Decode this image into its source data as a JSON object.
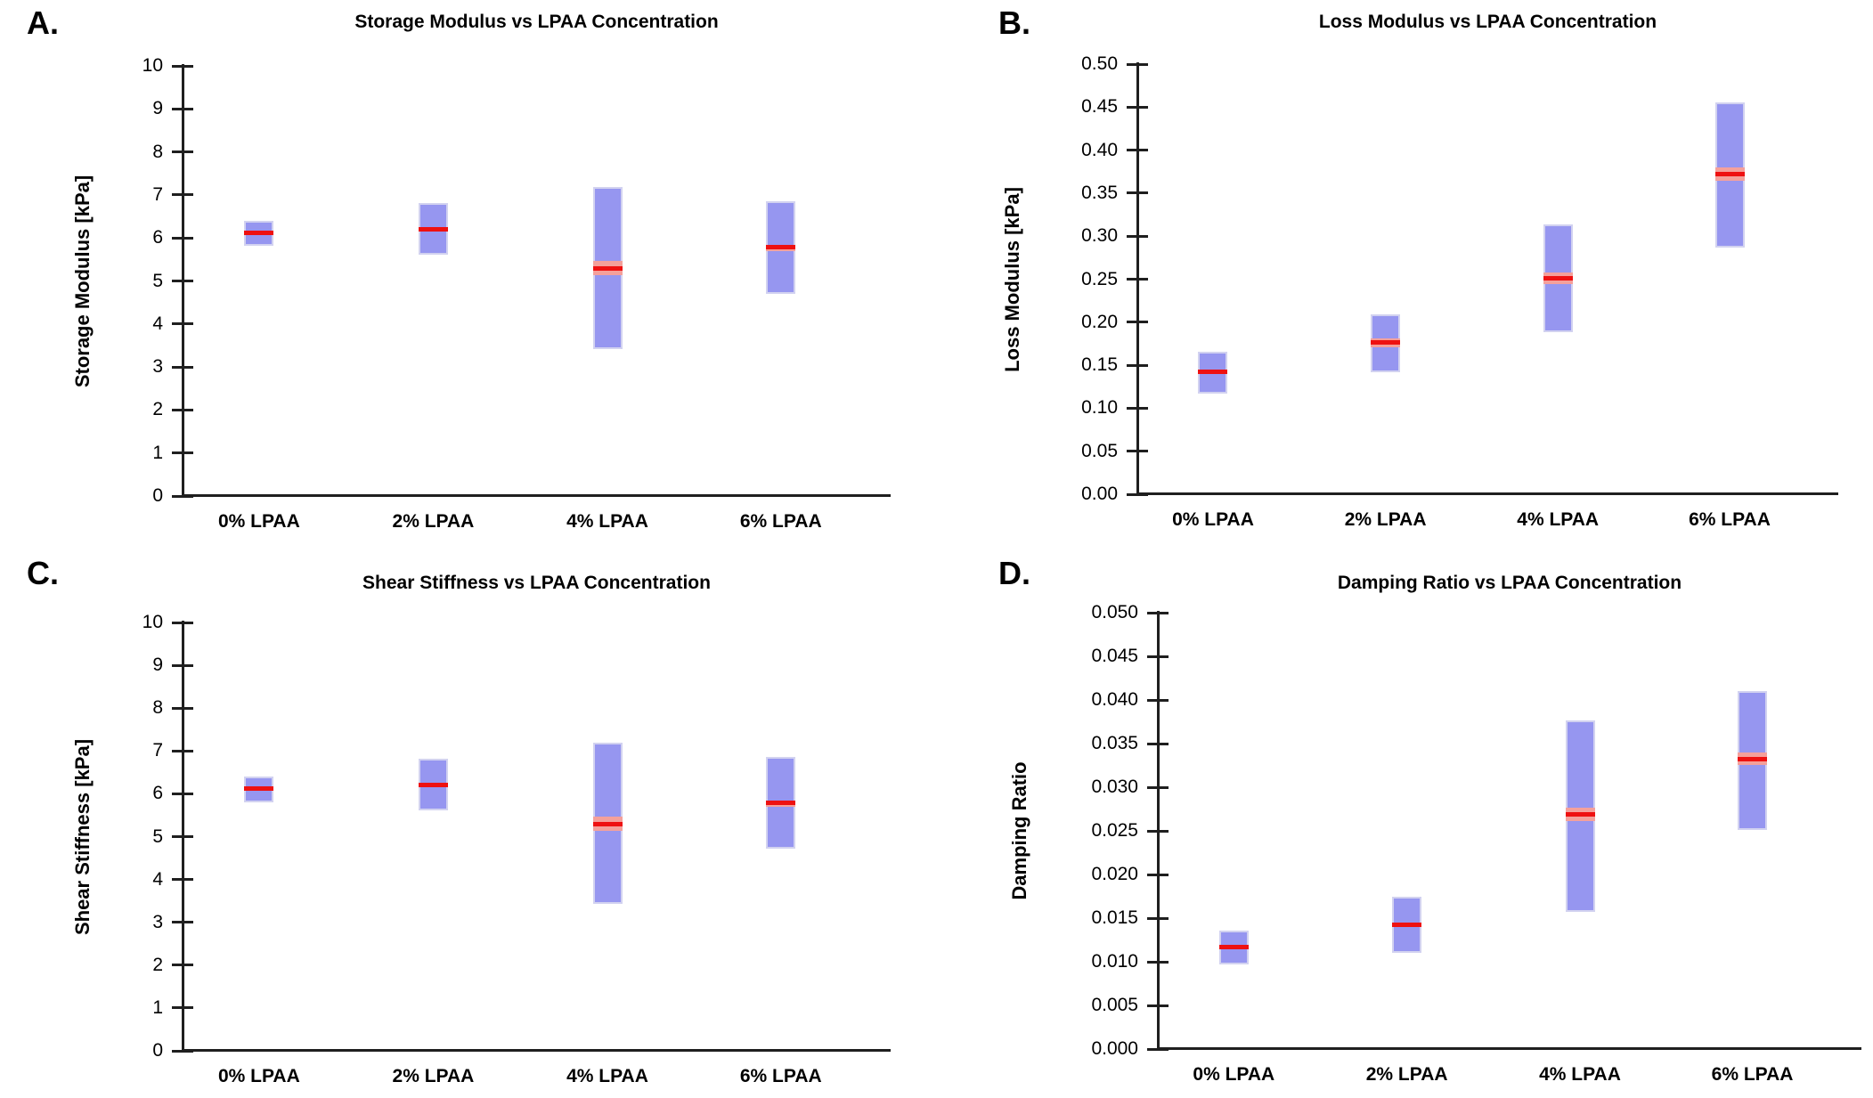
{
  "figure": {
    "background": "#FFFFFF",
    "colors": {
      "bar_fill": "#9696F0",
      "bar_border": "#D2D2F0",
      "median_line": "#EE1111",
      "median_band": "#F4A09B",
      "axis": "#1F1F1F",
      "text": "#000000"
    }
  },
  "chart_data": [
    {
      "panel_letter": "A.",
      "type": "bar",
      "bar_style": "floating-range-bar-with-median",
      "title": "Storage Modulus vs LPAA Concentration",
      "xlabel": "",
      "ylabel": "Storage Modulus [kPa]",
      "ylim": [
        0,
        10
      ],
      "ytick_labels": [
        "0",
        "1",
        "2",
        "3",
        "4",
        "5",
        "6",
        "7",
        "8",
        "9",
        "10"
      ],
      "grid": false,
      "legend": null,
      "categories": [
        "0% LPAA",
        "2% LPAA",
        "4% LPAA",
        "6% LPAA"
      ],
      "bars": [
        {
          "category": "0% LPAA",
          "low": 5.81,
          "high": 6.4,
          "median": 6.12,
          "band_low": null,
          "band_high": null
        },
        {
          "category": "2% LPAA",
          "low": 5.62,
          "high": 6.82,
          "median": 6.21,
          "band_low": null,
          "band_high": null
        },
        {
          "category": "4% LPAA",
          "low": 3.42,
          "high": 7.19,
          "median": 5.3,
          "band_low": 5.13,
          "band_high": 5.47
        },
        {
          "category": "6% LPAA",
          "low": 4.71,
          "high": 6.86,
          "median": 5.79,
          "band_low": 5.69,
          "band_high": 5.83
        }
      ]
    },
    {
      "panel_letter": "B.",
      "type": "bar",
      "bar_style": "floating-range-bar-with-median",
      "title": "Loss Modulus vs LPAA Concentration",
      "xlabel": "",
      "ylabel": "Loss Modulus [kPa]",
      "ylim": [
        0,
        0.5
      ],
      "ytick_labels": [
        "0.00",
        "0.05",
        "0.10",
        "0.15",
        "0.20",
        "0.25",
        "0.30",
        "0.35",
        "0.40",
        "0.45",
        "0.50"
      ],
      "grid": false,
      "legend": null,
      "categories": [
        "0% LPAA",
        "2% LPAA",
        "4% LPAA",
        "6% LPAA"
      ],
      "bars": [
        {
          "category": "0% LPAA",
          "low": 0.117,
          "high": 0.166,
          "median": 0.142,
          "band_low": null,
          "band_high": null
        },
        {
          "category": "2% LPAA",
          "low": 0.142,
          "high": 0.209,
          "median": 0.176,
          "band_low": 0.171,
          "band_high": 0.181
        },
        {
          "category": "4% LPAA",
          "low": 0.188,
          "high": 0.314,
          "median": 0.251,
          "band_low": 0.244,
          "band_high": 0.258
        },
        {
          "category": "6% LPAA",
          "low": 0.287,
          "high": 0.456,
          "median": 0.372,
          "band_low": 0.364,
          "band_high": 0.38
        }
      ]
    },
    {
      "panel_letter": "C.",
      "type": "bar",
      "bar_style": "floating-range-bar-with-median",
      "title": "Shear Stiffness vs LPAA Concentration",
      "xlabel": "",
      "ylabel": "Shear Stiffness [kPa]",
      "ylim": [
        0,
        10
      ],
      "ytick_labels": [
        "0",
        "1",
        "2",
        "3",
        "4",
        "5",
        "6",
        "7",
        "8",
        "9",
        "10"
      ],
      "grid": false,
      "legend": null,
      "categories": [
        "0% LPAA",
        "2% LPAA",
        "4% LPAA",
        "6% LPAA"
      ],
      "bars": [
        {
          "category": "0% LPAA",
          "low": 5.81,
          "high": 6.4,
          "median": 6.12,
          "band_low": null,
          "band_high": null
        },
        {
          "category": "2% LPAA",
          "low": 5.62,
          "high": 6.82,
          "median": 6.21,
          "band_low": null,
          "band_high": null
        },
        {
          "category": "4% LPAA",
          "low": 3.42,
          "high": 7.19,
          "median": 5.3,
          "band_low": 5.13,
          "band_high": 5.47
        },
        {
          "category": "6% LPAA",
          "low": 4.71,
          "high": 6.86,
          "median": 5.79,
          "band_low": 5.69,
          "band_high": 5.83
        }
      ]
    },
    {
      "panel_letter": "D.",
      "type": "bar",
      "bar_style": "floating-range-bar-with-median",
      "title": "Damping Ratio vs LPAA Concentration",
      "xlabel": "",
      "ylabel": "Damping Ratio",
      "ylim": [
        0,
        0.05
      ],
      "ytick_labels": [
        "0.000",
        "0.005",
        "0.010",
        "0.015",
        "0.020",
        "0.025",
        "0.030",
        "0.035",
        "0.040",
        "0.045",
        "0.050"
      ],
      "grid": false,
      "legend": null,
      "categories": [
        "0% LPAA",
        "2% LPAA",
        "4% LPAA",
        "6% LPAA"
      ],
      "bars": [
        {
          "category": "0% LPAA",
          "low": 0.0097,
          "high": 0.0136,
          "median": 0.0117,
          "band_low": null,
          "band_high": null
        },
        {
          "category": "2% LPAA",
          "low": 0.011,
          "high": 0.0175,
          "median": 0.0142,
          "band_low": null,
          "band_high": null
        },
        {
          "category": "4% LPAA",
          "low": 0.0157,
          "high": 0.0377,
          "median": 0.0269,
          "band_low": 0.0261,
          "band_high": 0.0277
        },
        {
          "category": "6% LPAA",
          "low": 0.0251,
          "high": 0.041,
          "median": 0.0332,
          "band_low": 0.0325,
          "band_high": 0.034
        }
      ]
    }
  ]
}
